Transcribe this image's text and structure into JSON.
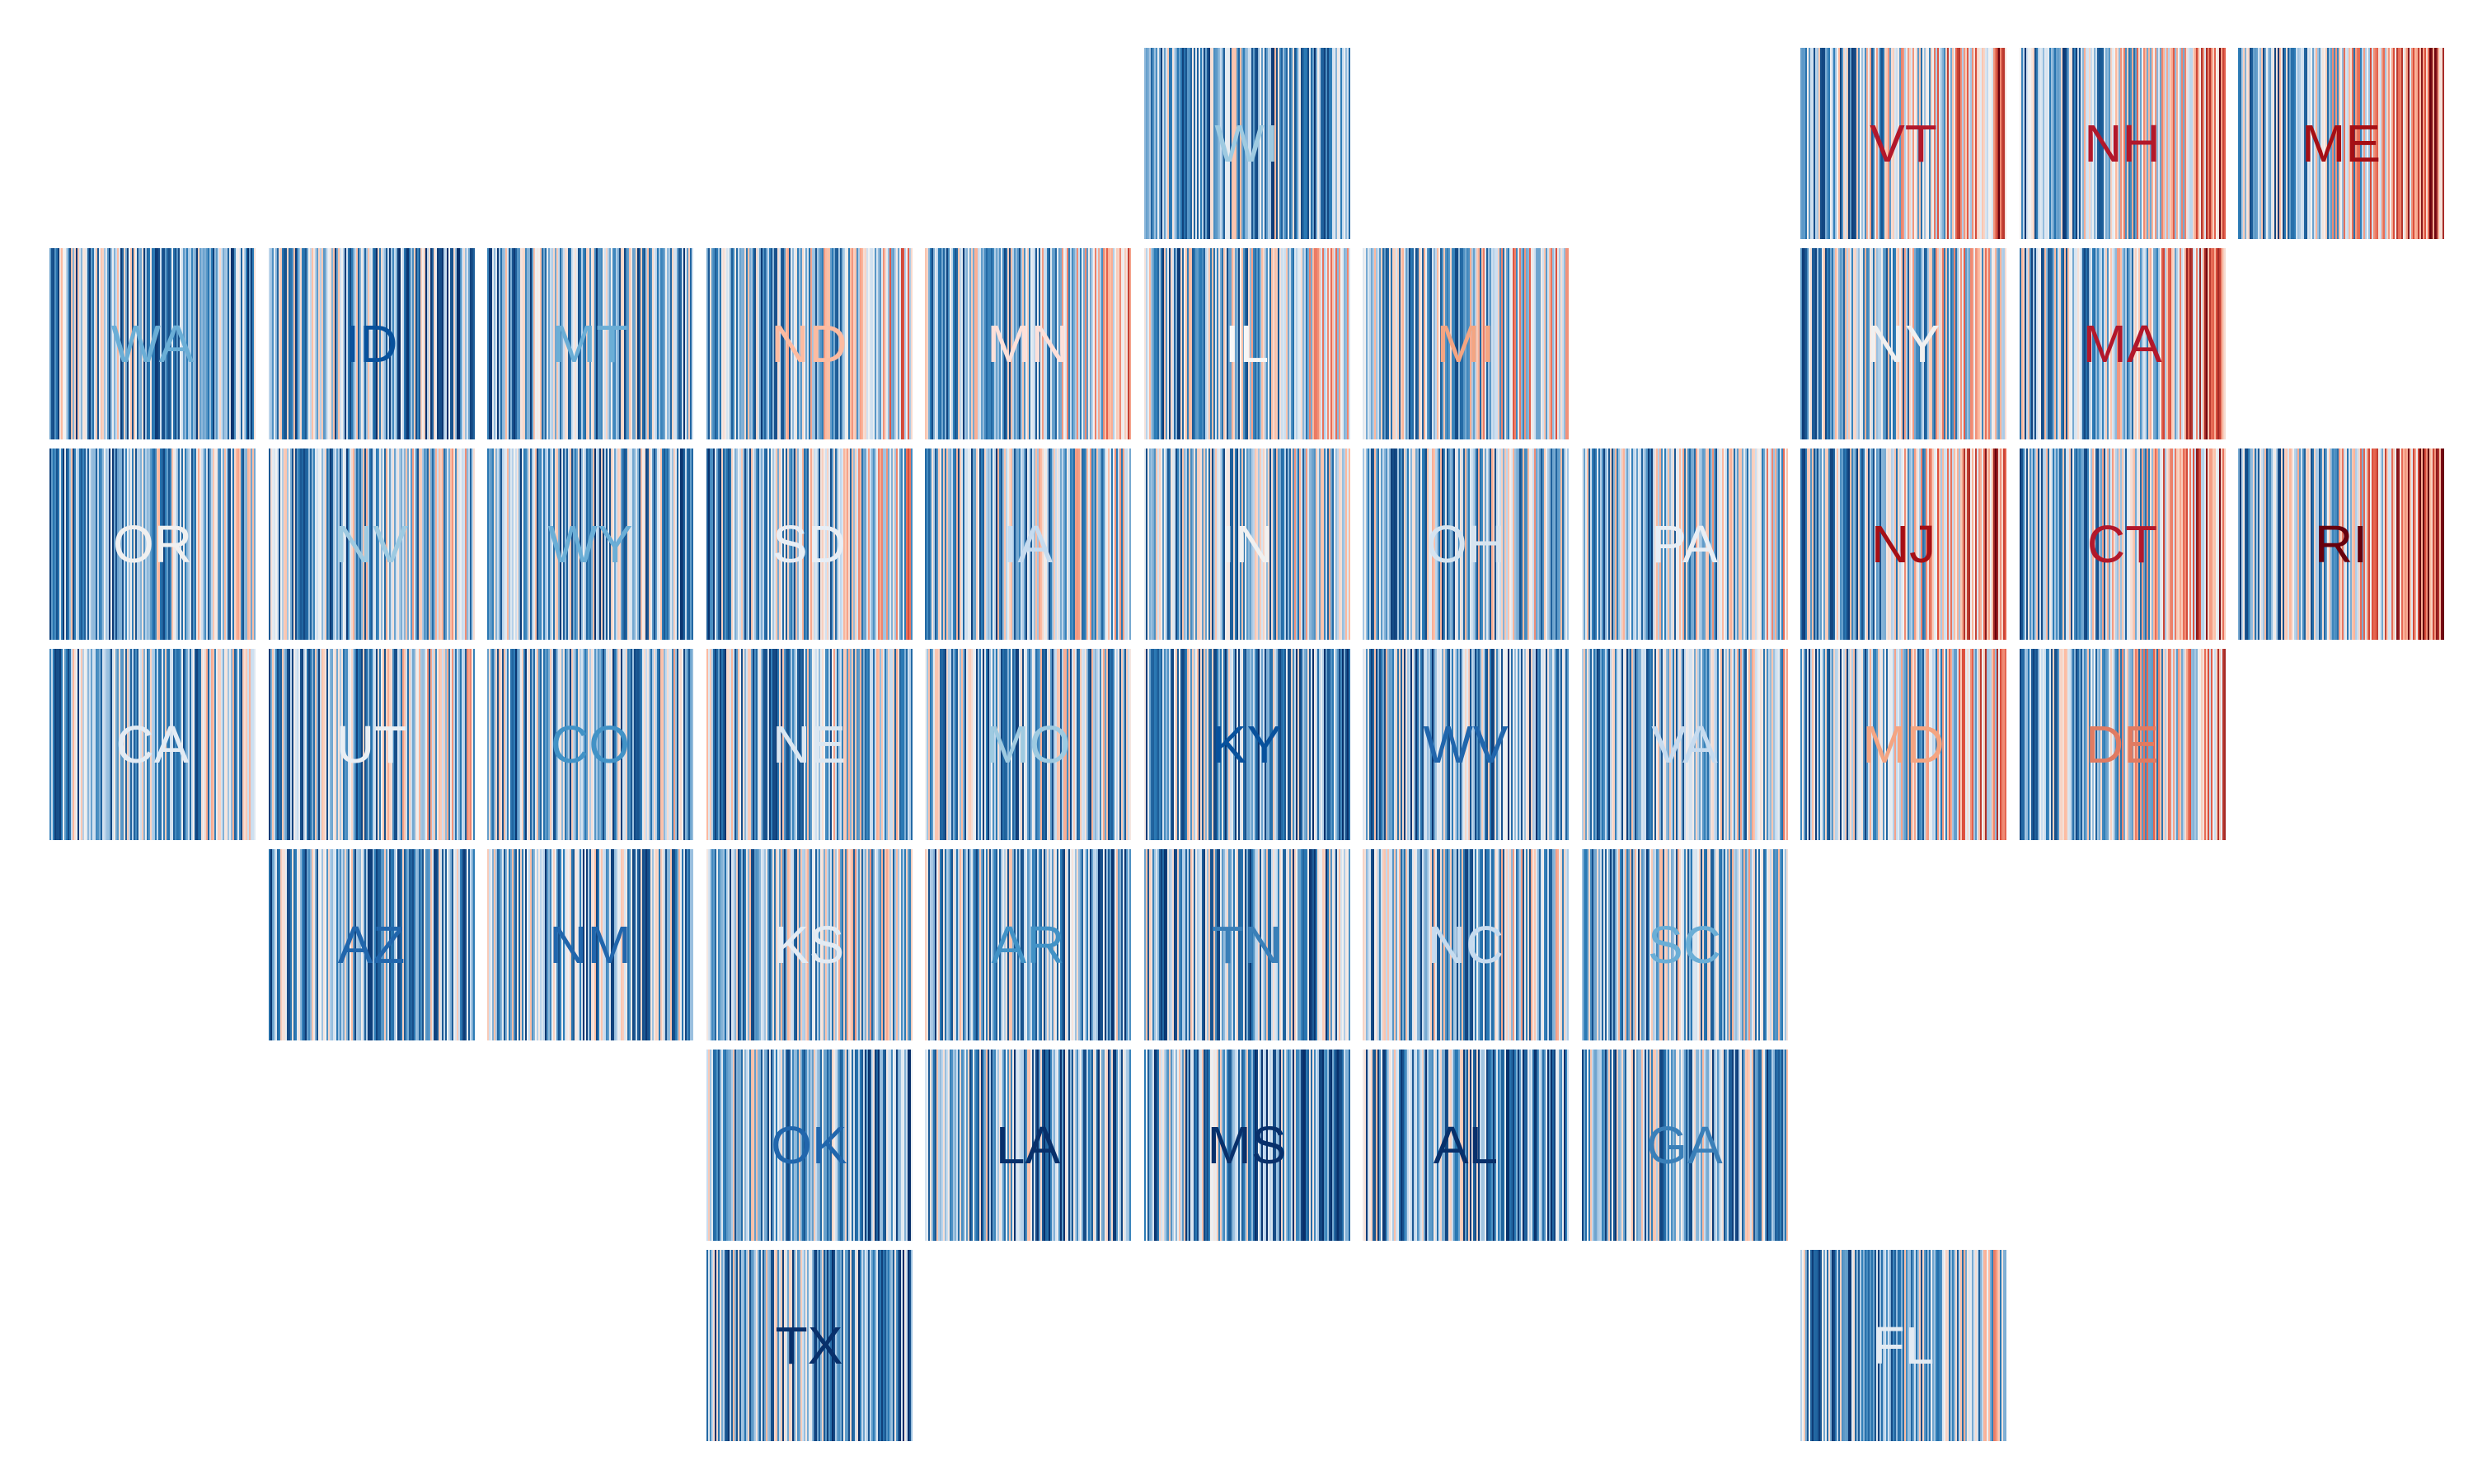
{
  "chart_data": {
    "type": "heatmap",
    "title": "",
    "xlabel": "",
    "ylabel": "",
    "bars_per_tile": 125,
    "grid": false,
    "legend": false,
    "colormap": {
      "cold_deep": "#08306b",
      "cold_mid": "#2c7bb6",
      "cold_light": "#c6dbef",
      "neutral": "#f2f2f2",
      "warm_light": "#fcbba1",
      "warm_mid": "#e0533f",
      "warm_deep": "#67000d"
    },
    "states": [
      {
        "abbr": "WI",
        "row": 0,
        "col": 5,
        "label_color": "#9ecae1",
        "trend": 0.35
      },
      {
        "abbr": "VT",
        "row": 0,
        "col": 8,
        "label_color": "#b2182b",
        "trend": 0.7
      },
      {
        "abbr": "NH",
        "row": 0,
        "col": 9,
        "label_color": "#b2182b",
        "trend": 0.7
      },
      {
        "abbr": "ME",
        "row": 0,
        "col": 10,
        "label_color": "#a50f15",
        "trend": 0.75
      },
      {
        "abbr": "WA",
        "row": 1,
        "col": 0,
        "label_color": "#6baed6",
        "trend": 0.3
      },
      {
        "abbr": "ID",
        "row": 1,
        "col": 1,
        "label_color": "#08519c",
        "trend": 0.3
      },
      {
        "abbr": "MT",
        "row": 1,
        "col": 2,
        "label_color": "#6baed6",
        "trend": 0.35
      },
      {
        "abbr": "ND",
        "row": 1,
        "col": 3,
        "label_color": "#fcbba1",
        "trend": 0.55
      },
      {
        "abbr": "MN",
        "row": 1,
        "col": 4,
        "label_color": "#fde0d9",
        "trend": 0.55
      },
      {
        "abbr": "IL",
        "row": 1,
        "col": 5,
        "label_color": "#f7f7f7",
        "trend": 0.5
      },
      {
        "abbr": "MI",
        "row": 1,
        "col": 6,
        "label_color": "#f4a582",
        "trend": 0.6
      },
      {
        "abbr": "NY",
        "row": 1,
        "col": 8,
        "label_color": "#f0f0f0",
        "trend": 0.55
      },
      {
        "abbr": "MA",
        "row": 1,
        "col": 9,
        "label_color": "#b2182b",
        "trend": 0.7
      },
      {
        "abbr": "OR",
        "row": 2,
        "col": 0,
        "label_color": "#f0f0f0",
        "trend": 0.4
      },
      {
        "abbr": "NV",
        "row": 2,
        "col": 1,
        "label_color": "#9ecae1",
        "trend": 0.45
      },
      {
        "abbr": "WY",
        "row": 2,
        "col": 2,
        "label_color": "#6baed6",
        "trend": 0.35
      },
      {
        "abbr": "SD",
        "row": 2,
        "col": 3,
        "label_color": "#e8eef5",
        "trend": 0.5
      },
      {
        "abbr": "IA",
        "row": 2,
        "col": 4,
        "label_color": "#c6dbef",
        "trend": 0.45
      },
      {
        "abbr": "IN",
        "row": 2,
        "col": 5,
        "label_color": "#f0f0f0",
        "trend": 0.45
      },
      {
        "abbr": "OH",
        "row": 2,
        "col": 6,
        "label_color": "#d6e4f0",
        "trend": 0.45
      },
      {
        "abbr": "PA",
        "row": 2,
        "col": 7,
        "label_color": "#e8eef5",
        "trend": 0.5
      },
      {
        "abbr": "NJ",
        "row": 2,
        "col": 8,
        "label_color": "#a50f15",
        "trend": 0.7
      },
      {
        "abbr": "CT",
        "row": 2,
        "col": 9,
        "label_color": "#b2182b",
        "trend": 0.7
      },
      {
        "abbr": "RI",
        "row": 2,
        "col": 10,
        "label_color": "#67000d",
        "trend": 0.8
      },
      {
        "abbr": "CA",
        "row": 3,
        "col": 0,
        "label_color": "#e3ebf3",
        "trend": 0.4
      },
      {
        "abbr": "UT",
        "row": 3,
        "col": 1,
        "label_color": "#eaeff4",
        "trend": 0.45
      },
      {
        "abbr": "CO",
        "row": 3,
        "col": 2,
        "label_color": "#4292c6",
        "trend": 0.4
      },
      {
        "abbr": "NE",
        "row": 3,
        "col": 3,
        "label_color": "#dbe7f2",
        "trend": 0.45
      },
      {
        "abbr": "MO",
        "row": 3,
        "col": 4,
        "label_color": "#9ecae1",
        "trend": 0.4
      },
      {
        "abbr": "KY",
        "row": 3,
        "col": 5,
        "label_color": "#08519c",
        "trend": 0.3
      },
      {
        "abbr": "WV",
        "row": 3,
        "col": 6,
        "label_color": "#2166ac",
        "trend": 0.3
      },
      {
        "abbr": "VA",
        "row": 3,
        "col": 7,
        "label_color": "#c6dbef",
        "trend": 0.45
      },
      {
        "abbr": "MD",
        "row": 3,
        "col": 8,
        "label_color": "#f4a582",
        "trend": 0.6
      },
      {
        "abbr": "DE",
        "row": 3,
        "col": 9,
        "label_color": "#e07b62",
        "trend": 0.65
      },
      {
        "abbr": "AZ",
        "row": 4,
        "col": 1,
        "label_color": "#2166ac",
        "trend": 0.35
      },
      {
        "abbr": "NM",
        "row": 4,
        "col": 2,
        "label_color": "#2166ac",
        "trend": 0.35
      },
      {
        "abbr": "KS",
        "row": 4,
        "col": 3,
        "label_color": "#e3ebf3",
        "trend": 0.45
      },
      {
        "abbr": "AR",
        "row": 4,
        "col": 4,
        "label_color": "#4292c6",
        "trend": 0.35
      },
      {
        "abbr": "TN",
        "row": 4,
        "col": 5,
        "label_color": "#3a7fb8",
        "trend": 0.35
      },
      {
        "abbr": "NC",
        "row": 4,
        "col": 6,
        "label_color": "#c6dbef",
        "trend": 0.45
      },
      {
        "abbr": "SC",
        "row": 4,
        "col": 7,
        "label_color": "#6baed6",
        "trend": 0.45
      },
      {
        "abbr": "OK",
        "row": 5,
        "col": 3,
        "label_color": "#2166ac",
        "trend": 0.3
      },
      {
        "abbr": "LA",
        "row": 5,
        "col": 4,
        "label_color": "#08306b",
        "trend": 0.3
      },
      {
        "abbr": "MS",
        "row": 5,
        "col": 5,
        "label_color": "#08306b",
        "trend": 0.25
      },
      {
        "abbr": "AL",
        "row": 5,
        "col": 6,
        "label_color": "#08306b",
        "trend": 0.25
      },
      {
        "abbr": "GA",
        "row": 5,
        "col": 7,
        "label_color": "#3a7fb8",
        "trend": 0.35
      },
      {
        "abbr": "TX",
        "row": 6,
        "col": 3,
        "label_color": "#08306b",
        "trend": 0.3
      },
      {
        "abbr": "FL",
        "row": 6,
        "col": 8,
        "label_color": "#e3ebf3",
        "trend": 0.45
      }
    ]
  }
}
